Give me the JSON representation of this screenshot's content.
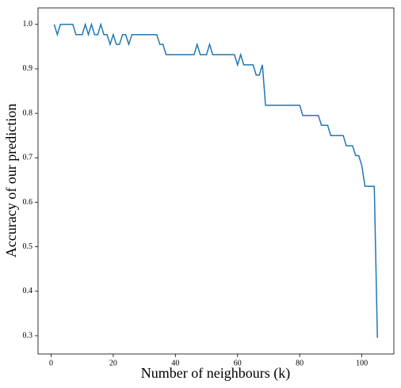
{
  "chart_data": {
    "type": "line",
    "xlabel": "Number of neighbours (k)",
    "ylabel": "Accuracy of our prediction",
    "x": [
      1,
      2,
      3,
      4,
      5,
      6,
      7,
      8,
      9,
      10,
      11,
      12,
      13,
      14,
      15,
      16,
      17,
      18,
      19,
      20,
      21,
      22,
      23,
      24,
      25,
      26,
      27,
      28,
      29,
      30,
      31,
      32,
      33,
      34,
      35,
      36,
      37,
      38,
      39,
      40,
      41,
      42,
      43,
      44,
      45,
      46,
      47,
      48,
      49,
      50,
      51,
      52,
      53,
      54,
      55,
      56,
      57,
      58,
      59,
      60,
      61,
      62,
      63,
      64,
      65,
      66,
      67,
      68,
      69,
      70,
      71,
      72,
      73,
      74,
      75,
      76,
      77,
      78,
      79,
      80,
      81,
      82,
      83,
      84,
      85,
      86,
      87,
      88,
      89,
      90,
      91,
      92,
      93,
      94,
      95,
      96,
      97,
      98,
      99,
      100,
      101,
      102,
      103,
      104,
      105
    ],
    "series": [
      {
        "color": "#1f77b4",
        "values": [
          1.0,
          0.977,
          1.0,
          1.0,
          1.0,
          1.0,
          1.0,
          0.977,
          0.977,
          0.977,
          1.0,
          0.977,
          1.0,
          0.977,
          0.977,
          1.0,
          0.977,
          0.977,
          0.955,
          0.977,
          0.955,
          0.955,
          0.977,
          0.977,
          0.955,
          0.977,
          0.977,
          0.977,
          0.977,
          0.977,
          0.977,
          0.977,
          0.977,
          0.977,
          0.955,
          0.955,
          0.932,
          0.932,
          0.932,
          0.932,
          0.932,
          0.932,
          0.932,
          0.932,
          0.932,
          0.932,
          0.955,
          0.932,
          0.932,
          0.932,
          0.955,
          0.932,
          0.932,
          0.932,
          0.932,
          0.932,
          0.932,
          0.932,
          0.932,
          0.909,
          0.932,
          0.909,
          0.909,
          0.909,
          0.909,
          0.886,
          0.886,
          0.909,
          0.818,
          0.818,
          0.818,
          0.818,
          0.818,
          0.818,
          0.818,
          0.818,
          0.818,
          0.818,
          0.818,
          0.818,
          0.795,
          0.795,
          0.795,
          0.795,
          0.795,
          0.795,
          0.773,
          0.773,
          0.773,
          0.75,
          0.75,
          0.75,
          0.75,
          0.75,
          0.727,
          0.727,
          0.727,
          0.705,
          0.705,
          0.682,
          0.636,
          0.636,
          0.636,
          0.636,
          0.295
        ]
      }
    ],
    "xlim": [
      -4.2,
      110.3
    ],
    "ylim": [
      0.259,
      1.037
    ],
    "xticks": [
      0,
      20,
      40,
      60,
      80,
      100
    ],
    "yticks": [
      0.3,
      0.4,
      0.5,
      0.6,
      0.7,
      0.8,
      0.9,
      {
        "value": 1.0,
        "label": "1.0"
      }
    ]
  }
}
